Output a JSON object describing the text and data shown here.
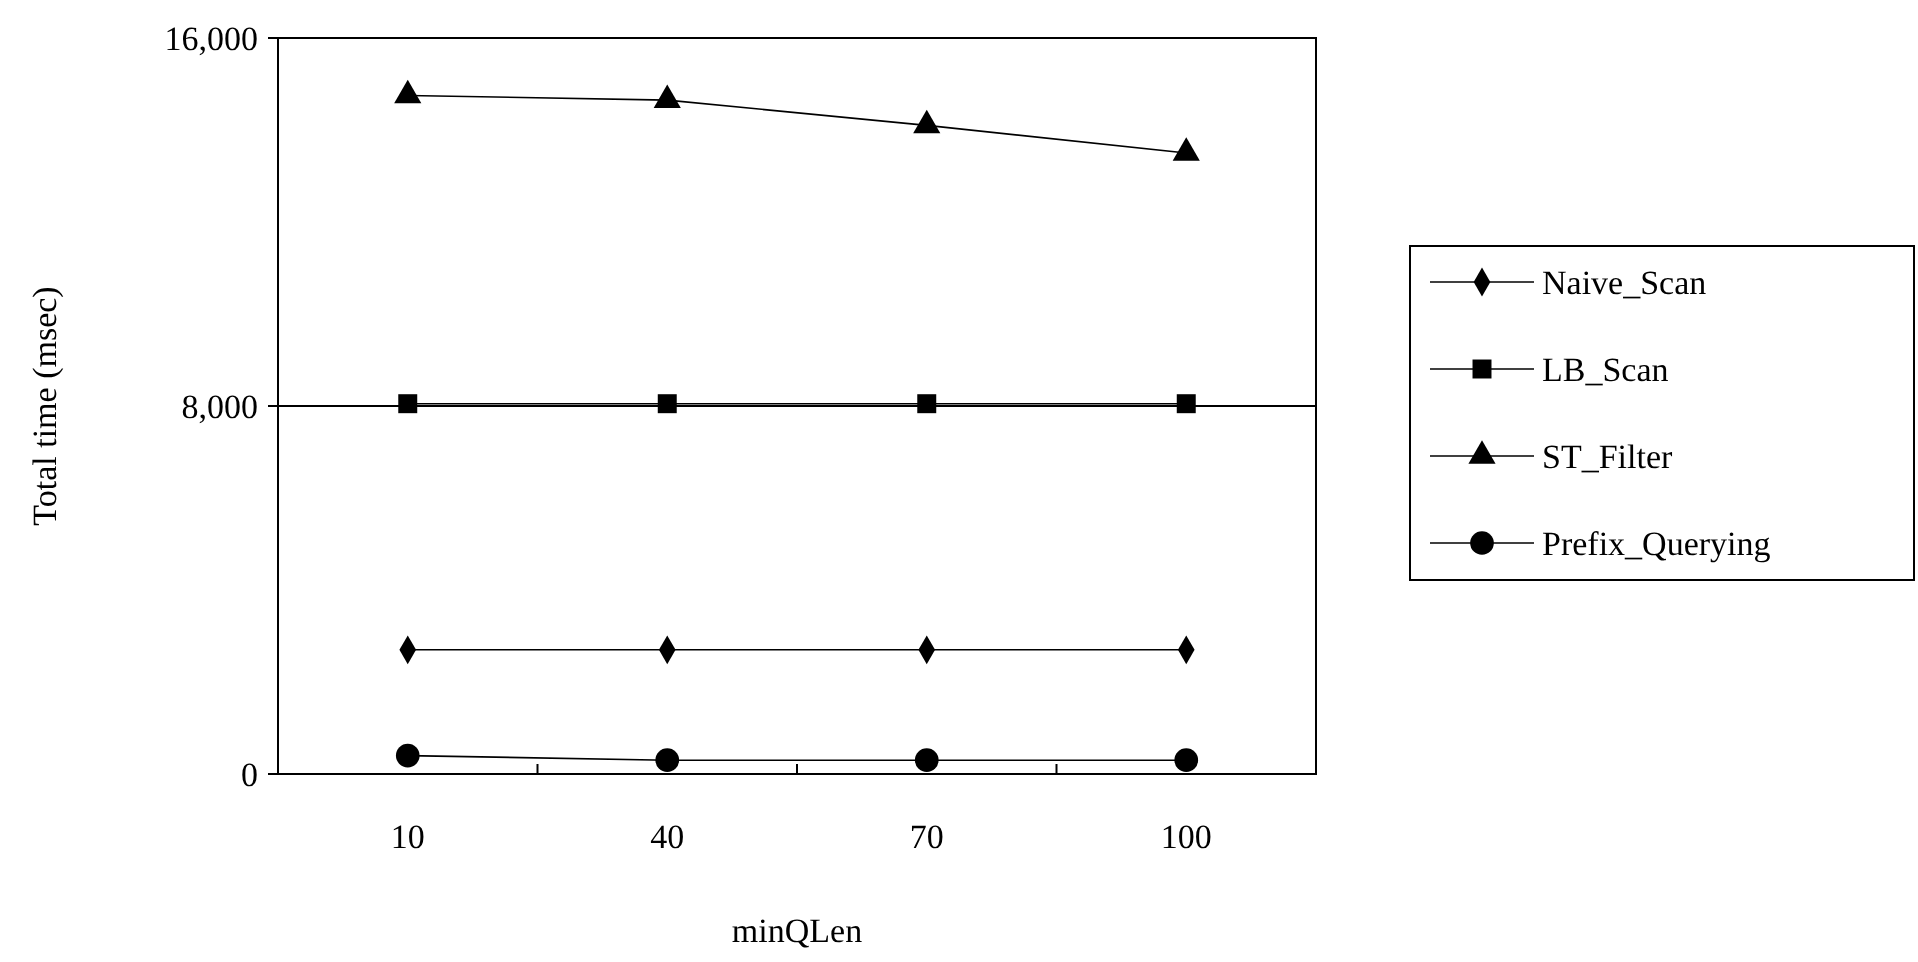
{
  "chart_data": {
    "type": "line",
    "xlabel": "minQLen",
    "ylabel": "Total time (msec)",
    "categories": [
      "10",
      "40",
      "70",
      "100"
    ],
    "ylim": [
      0,
      16000
    ],
    "yticks": [
      {
        "value": 0,
        "label": "0"
      },
      {
        "value": 8000,
        "label": "8,000"
      },
      {
        "value": 16000,
        "label": "16,000"
      }
    ],
    "ref_lines": [
      {
        "axis": "y",
        "value": 8000,
        "color": "#000000"
      }
    ],
    "legend": "right",
    "series": [
      {
        "name": "Naive_Scan",
        "color": "#000000",
        "marker": "diamond",
        "values": [
          2700,
          2700,
          2700,
          2700
        ]
      },
      {
        "name": "LB_Scan",
        "color": "#000000",
        "marker": "square",
        "values": [
          8050,
          8050,
          8050,
          8050
        ]
      },
      {
        "name": "ST_Filter",
        "color": "#000000",
        "marker": "triangle",
        "values": [
          14750,
          14650,
          14100,
          13500
        ]
      },
      {
        "name": "Prefix_Querying",
        "color": "#000000",
        "marker": "circle",
        "values": [
          400,
          300,
          300,
          300
        ]
      }
    ]
  }
}
